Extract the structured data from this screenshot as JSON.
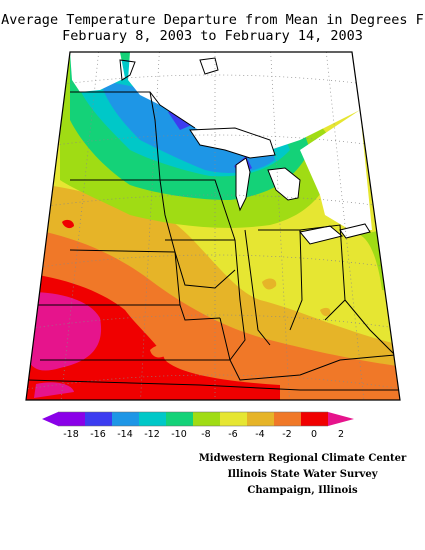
{
  "title": {
    "line1": "Average Temperature Departure from Mean in Degrees F",
    "line2": "February 8, 2003 to February 14, 2003"
  },
  "legend": {
    "ticks": [
      "-18",
      "-16",
      "-14",
      "-12",
      "-10",
      "-8",
      "-6",
      "-4",
      "-2",
      "0",
      "2"
    ],
    "colors": [
      "#8a00e8",
      "#3c3cf0",
      "#1e96e6",
      "#00c8c8",
      "#14d278",
      "#a0dc14",
      "#e6e632",
      "#e6b428",
      "#f07828",
      "#f00000",
      "#e6148c"
    ]
  },
  "credits": {
    "line1": "Midwestern Regional Climate Center",
    "line2": "Illinois State Water Survey",
    "line3": "Champaign, Illinois"
  },
  "colors": {
    "lake": "#ffffff",
    "boundary": "#000000",
    "graticule": "#888888"
  }
}
